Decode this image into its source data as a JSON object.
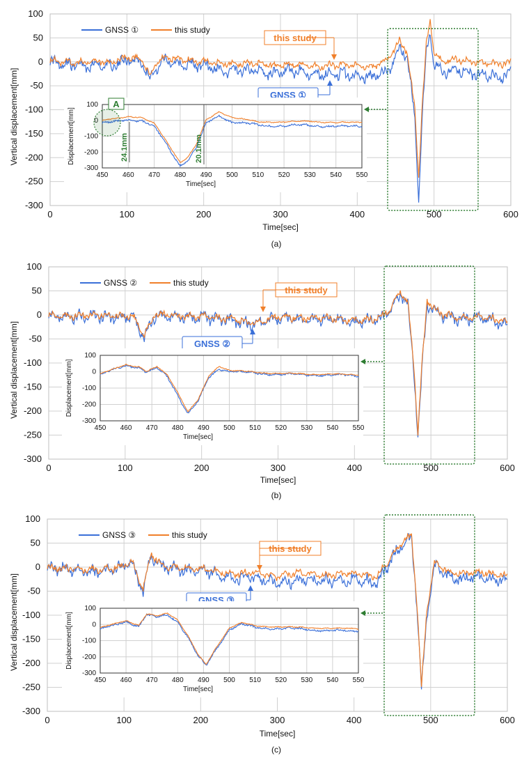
{
  "colors": {
    "gnss": "#3a6fd8",
    "study": "#f07f2a",
    "highlight": "#2e7d32",
    "grid": "#d0d0d0"
  },
  "chart_data": [
    {
      "type": "line",
      "panel": "(a)",
      "xlabel": "Time[sec]",
      "ylabel": "Vertical displacement[mm]",
      "xlim": [
        0,
        600
      ],
      "ylim": [
        -300,
        100
      ],
      "xticks": [
        0,
        100,
        200,
        300,
        400,
        500,
        600
      ],
      "yticks": [
        100,
        50,
        0,
        -50,
        -100,
        -150,
        -200,
        -250,
        -300
      ],
      "grid": true,
      "legend_position": "top-left",
      "series": [
        {
          "name": "GNSS ①",
          "color": "#3a6fd8",
          "x": [
            0,
            20,
            40,
            60,
            80,
            100,
            120,
            130,
            140,
            150,
            170,
            200,
            230,
            260,
            290,
            320,
            350,
            380,
            400,
            420,
            440,
            455,
            465,
            475,
            480,
            485,
            490,
            495,
            500,
            510,
            530,
            550,
            570,
            590,
            600
          ],
          "y": [
            0,
            -5,
            -8,
            -5,
            -10,
            5,
            0,
            -35,
            -10,
            5,
            -5,
            -8,
            -20,
            -15,
            -25,
            -20,
            -28,
            -25,
            -30,
            -32,
            -20,
            30,
            10,
            -120,
            -285,
            -100,
            20,
            55,
            -5,
            -20,
            -18,
            -25,
            -28,
            -32,
            -20
          ]
        },
        {
          "name": "this study",
          "color": "#f07f2a",
          "x": [
            0,
            20,
            40,
            60,
            80,
            100,
            120,
            130,
            140,
            150,
            170,
            200,
            230,
            260,
            290,
            320,
            350,
            380,
            400,
            420,
            440,
            455,
            465,
            475,
            480,
            485,
            490,
            495,
            500,
            510,
            530,
            550,
            570,
            590,
            600
          ],
          "y": [
            2,
            0,
            -2,
            2,
            -2,
            10,
            5,
            -30,
            0,
            10,
            5,
            2,
            -5,
            -2,
            -8,
            -5,
            -10,
            -5,
            -8,
            -10,
            5,
            45,
            20,
            -100,
            -240,
            -80,
            35,
            88,
            20,
            0,
            5,
            0,
            -2,
            -5,
            0
          ]
        }
      ],
      "annotations": [
        "this study",
        "GNSS ①",
        "A",
        "24.1mm",
        "20.1mm"
      ],
      "inset": {
        "xlabel": "Time[sec]",
        "ylabel": "Displacement[mm]",
        "xlim": [
          450,
          550
        ],
        "ylim": [
          -300,
          100
        ],
        "xticks": [
          450,
          460,
          470,
          480,
          490,
          500,
          510,
          520,
          530,
          540,
          550
        ],
        "yticks": [
          100,
          0,
          -100,
          -200,
          -300
        ],
        "series": [
          {
            "name": "GNSS ①",
            "x": [
              450,
              455,
              460,
              465,
              470,
              475,
              480,
              483,
              486,
              490,
              495,
              500,
              510,
              520,
              530,
              540,
              550
            ],
            "y": [
              -20,
              -10,
              5,
              0,
              -40,
              -160,
              -285,
              -250,
              -180,
              -20,
              30,
              -10,
              -30,
              -35,
              -30,
              -40,
              -35
            ]
          },
          {
            "name": "this study",
            "x": [
              450,
              455,
              460,
              465,
              470,
              475,
              480,
              483,
              486,
              490,
              495,
              500,
              510,
              520,
              530,
              540,
              550
            ],
            "y": [
              0,
              10,
              25,
              20,
              -20,
              -140,
              -265,
              -230,
              -160,
              0,
              55,
              20,
              -10,
              -10,
              -5,
              -15,
              -10
            ]
          }
        ]
      }
    },
    {
      "type": "line",
      "panel": "(b)",
      "xlabel": "Time[sec]",
      "ylabel": "Vertical displacement[mm]",
      "xlim": [
        0,
        600
      ],
      "ylim": [
        -300,
        100
      ],
      "xticks": [
        0,
        100,
        200,
        300,
        400,
        500,
        600
      ],
      "yticks": [
        100,
        50,
        0,
        -50,
        -100,
        -150,
        -200,
        -250,
        -300
      ],
      "grid": true,
      "legend_position": "top-left",
      "series": [
        {
          "name": "GNSS ②",
          "color": "#3a6fd8",
          "x": [
            0,
            30,
            60,
            90,
            110,
            125,
            140,
            170,
            200,
            240,
            270,
            300,
            330,
            360,
            400,
            430,
            445,
            460,
            470,
            478,
            483,
            488,
            495,
            510,
            540,
            570,
            600
          ],
          "y": [
            0,
            -5,
            -2,
            -5,
            -5,
            -45,
            0,
            -5,
            -5,
            -10,
            -20,
            -5,
            -10,
            -8,
            -15,
            -10,
            5,
            45,
            20,
            -120,
            -255,
            -120,
            20,
            0,
            -10,
            -5,
            -20
          ]
        },
        {
          "name": "this study",
          "color": "#f07f2a",
          "x": [
            0,
            30,
            60,
            90,
            110,
            125,
            140,
            170,
            200,
            240,
            270,
            300,
            330,
            360,
            400,
            430,
            445,
            460,
            470,
            478,
            483,
            488,
            495,
            510,
            540,
            570,
            600
          ],
          "y": [
            0,
            -3,
            0,
            -3,
            -3,
            -42,
            2,
            -3,
            -3,
            -8,
            -18,
            -3,
            -8,
            -5,
            -12,
            -8,
            8,
            48,
            25,
            -110,
            -245,
            -110,
            30,
            5,
            -8,
            -3,
            -15
          ]
        }
      ],
      "annotations": [
        "this study",
        "GNSS ②"
      ],
      "inset": {
        "xlabel": "Time[sec]",
        "ylabel": "Displacement[mm]",
        "xlim": [
          450,
          550
        ],
        "ylim": [
          -300,
          100
        ],
        "xticks": [
          450,
          460,
          470,
          480,
          490,
          500,
          510,
          520,
          530,
          540,
          550
        ],
        "yticks": [
          100,
          0,
          -100,
          -200,
          -300
        ],
        "series": [
          {
            "name": "GNSS ②",
            "x": [
              450,
              455,
              460,
              465,
              468,
              472,
              476,
              480,
              484,
              488,
              492,
              496,
              500,
              510,
              520,
              530,
              540,
              550
            ],
            "y": [
              -20,
              10,
              40,
              25,
              -5,
              20,
              -30,
              -140,
              -255,
              -180,
              -40,
              20,
              5,
              -10,
              -15,
              -20,
              -20,
              -25
            ]
          },
          {
            "name": "this study",
            "x": [
              450,
              455,
              460,
              465,
              468,
              472,
              476,
              480,
              484,
              488,
              492,
              496,
              500,
              510,
              520,
              530,
              540,
              550
            ],
            "y": [
              -15,
              15,
              45,
              30,
              0,
              30,
              -20,
              -125,
              -245,
              -170,
              -30,
              35,
              10,
              -5,
              -10,
              -15,
              -15,
              -20
            ]
          }
        ]
      }
    },
    {
      "type": "line",
      "panel": "(c)",
      "xlabel": "Time[sec]",
      "ylabel": "Vertical displacement[mm]",
      "xlim": [
        0,
        600
      ],
      "ylim": [
        -300,
        100
      ],
      "xticks": [
        0,
        100,
        200,
        300,
        400,
        500,
        600
      ],
      "yticks": [
        100,
        50,
        0,
        -50,
        -100,
        -150,
        -200,
        -250,
        -300
      ],
      "grid": true,
      "legend_position": "top-left",
      "series": [
        {
          "name": "GNSS ③",
          "color": "#3a6fd8",
          "x": [
            0,
            30,
            60,
            90,
            110,
            125,
            135,
            150,
            180,
            210,
            240,
            270,
            300,
            330,
            360,
            400,
            430,
            450,
            465,
            475,
            482,
            488,
            495,
            505,
            530,
            560,
            600
          ],
          "y": [
            0,
            -5,
            -10,
            -5,
            10,
            -50,
            25,
            0,
            -5,
            -10,
            -25,
            -20,
            -35,
            -25,
            -30,
            -25,
            -35,
            20,
            50,
            60,
            -80,
            -255,
            -100,
            5,
            -25,
            -20,
            -30
          ]
        },
        {
          "name": "this study",
          "color": "#f07f2a",
          "x": [
            0,
            30,
            60,
            90,
            110,
            125,
            135,
            150,
            180,
            210,
            240,
            270,
            300,
            330,
            360,
            400,
            430,
            450,
            465,
            475,
            482,
            488,
            495,
            505,
            530,
            560,
            600
          ],
          "y": [
            0,
            -3,
            -5,
            -2,
            12,
            -45,
            28,
            2,
            -2,
            -5,
            -15,
            -10,
            -20,
            -12,
            -18,
            -12,
            -20,
            25,
            55,
            65,
            -70,
            -250,
            -90,
            10,
            -15,
            -10,
            -18
          ]
        }
      ],
      "annotations": [
        "this study",
        "GNSS ③"
      ],
      "inset": {
        "xlabel": "Time[sec]",
        "ylabel": "Displacement[mm]",
        "xlim": [
          450,
          550
        ],
        "ylim": [
          -300,
          100
        ],
        "xticks": [
          450,
          460,
          470,
          480,
          490,
          500,
          510,
          520,
          530,
          540,
          550
        ],
        "yticks": [
          100,
          0,
          -100,
          -200,
          -300
        ],
        "series": [
          {
            "name": "GNSS ③",
            "x": [
              450,
              455,
              460,
              465,
              468,
              472,
              476,
              480,
              484,
              488,
              491,
              495,
              500,
              505,
              510,
              520,
              530,
              540,
              550
            ],
            "y": [
              -30,
              -10,
              20,
              -10,
              60,
              40,
              60,
              20,
              -80,
              -200,
              -255,
              -150,
              -30,
              0,
              -20,
              -25,
              -30,
              -40,
              -40
            ]
          },
          {
            "name": "this study",
            "x": [
              450,
              455,
              460,
              465,
              468,
              472,
              476,
              480,
              484,
              488,
              491,
              495,
              500,
              505,
              510,
              520,
              530,
              540,
              550
            ],
            "y": [
              -20,
              0,
              25,
              -5,
              65,
              50,
              70,
              30,
              -70,
              -190,
              -250,
              -140,
              -20,
              10,
              -10,
              -15,
              -20,
              -25,
              -25
            ]
          }
        ]
      }
    }
  ],
  "panel_text": [
    {
      "legend": [
        "GNSS ①",
        "this study"
      ],
      "callout_study": "this study",
      "callout_gnss": "GNSS ①",
      "caption": "(a)",
      "marker_A": "A",
      "dim1": "24.1mm",
      "dim2": "20.1mm"
    },
    {
      "legend": [
        "GNSS ②",
        "this study"
      ],
      "callout_study": "this study",
      "callout_gnss": "GNSS ②",
      "caption": "(b)"
    },
    {
      "legend": [
        "GNSS ③",
        "this study"
      ],
      "callout_study": "this study",
      "callout_gnss": "GNSS ③",
      "caption": "(c)"
    }
  ]
}
